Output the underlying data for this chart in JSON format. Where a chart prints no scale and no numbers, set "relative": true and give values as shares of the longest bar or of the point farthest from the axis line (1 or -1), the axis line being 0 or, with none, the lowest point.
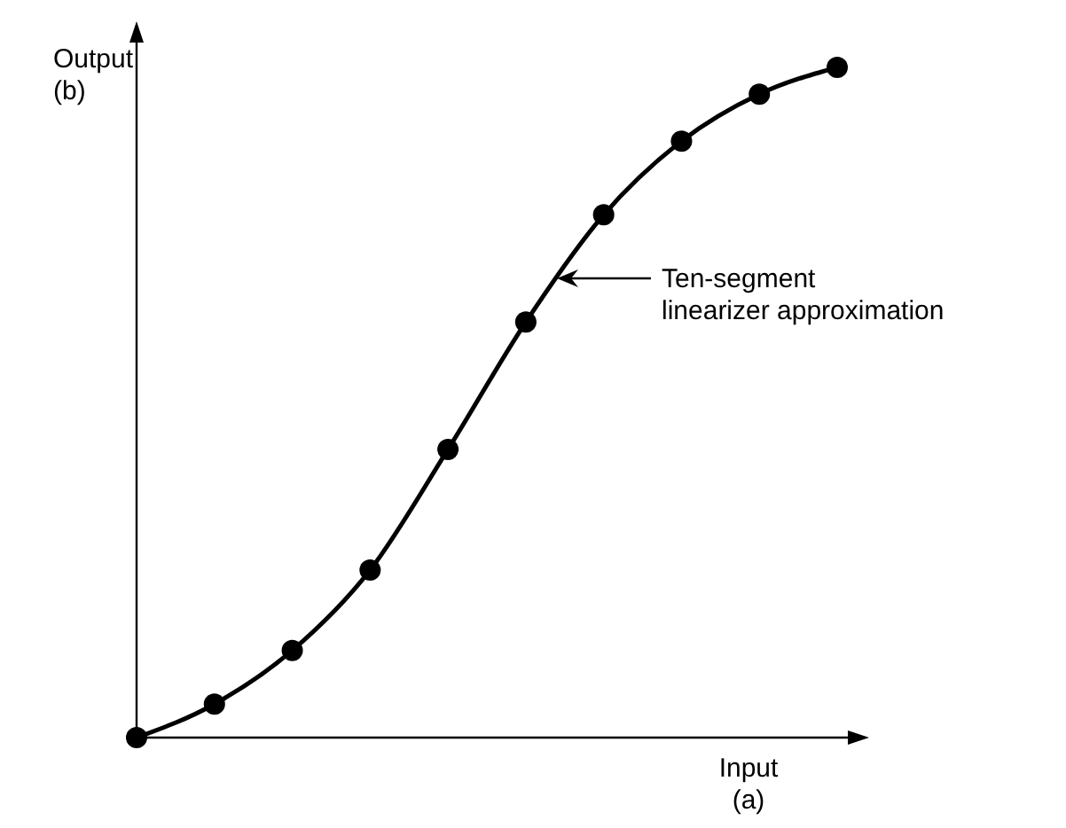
{
  "chart_data": {
    "type": "line",
    "relative": true,
    "xlabel": "Input\n(a)",
    "ylabel": "Output\n(b)",
    "categories": [
      null,
      null,
      null,
      null,
      null,
      null,
      null,
      null,
      null,
      null
    ],
    "series": [
      {
        "color": "#000000",
        "values": [
          0,
          0.05,
          0.13,
          0.25,
          0.43,
          0.62,
          0.78,
          0.89,
          0.96,
          1
        ]
      }
    ],
    "marker": "circle",
    "line_style": "solid",
    "annotations": [
      "Ten-segment\nlinearizer approximation"
    ]
  }
}
